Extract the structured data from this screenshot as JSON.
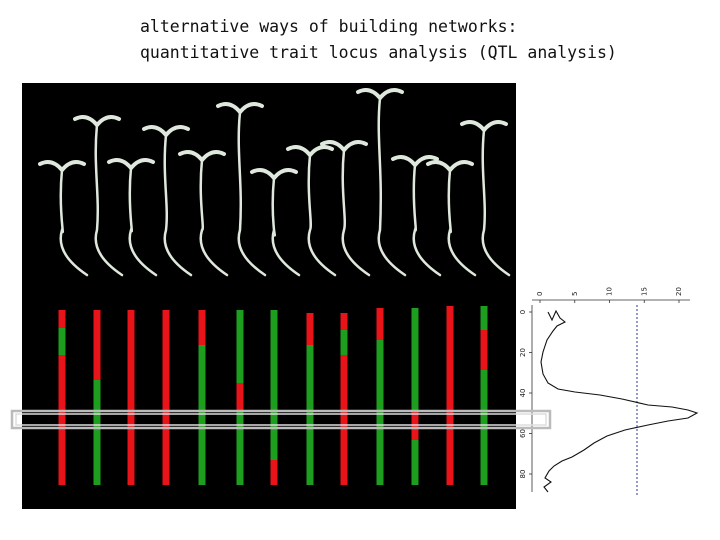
{
  "slide": {
    "title_lines": [
      "alternative ways of building networks:",
      "quantitative trait locus analysis (QTL analysis)"
    ]
  },
  "lod_plot": {
    "lod_ticks": [
      0,
      5,
      10,
      15,
      20
    ],
    "position_ticks": [
      0,
      20,
      40,
      60,
      80
    ]
  }
}
